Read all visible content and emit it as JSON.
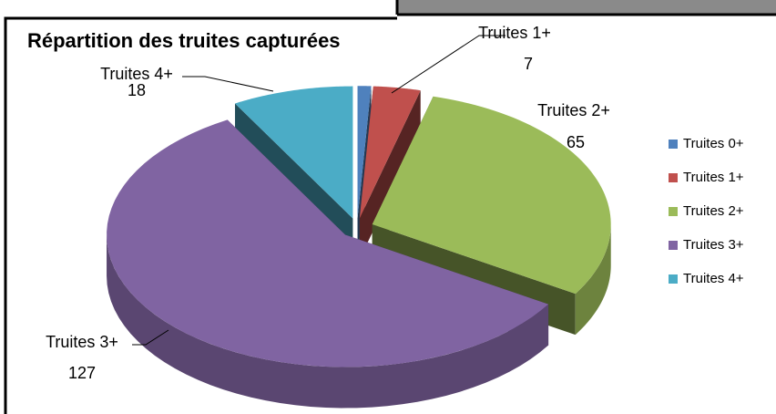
{
  "chart_data": {
    "type": "pie3d",
    "title": "Répartition des truites capturées",
    "categories": [
      "Truites 0+",
      "Truites 1+",
      "Truites 2+",
      "Truites 3+",
      "Truites 4+"
    ],
    "values": [
      2,
      7,
      65,
      127,
      18
    ],
    "colors": [
      "#4f81bd",
      "#c0504d",
      "#9bbb59",
      "#8064a2",
      "#4bacc6"
    ],
    "show_label": [
      false,
      true,
      true,
      true,
      true
    ],
    "legend": "right"
  }
}
